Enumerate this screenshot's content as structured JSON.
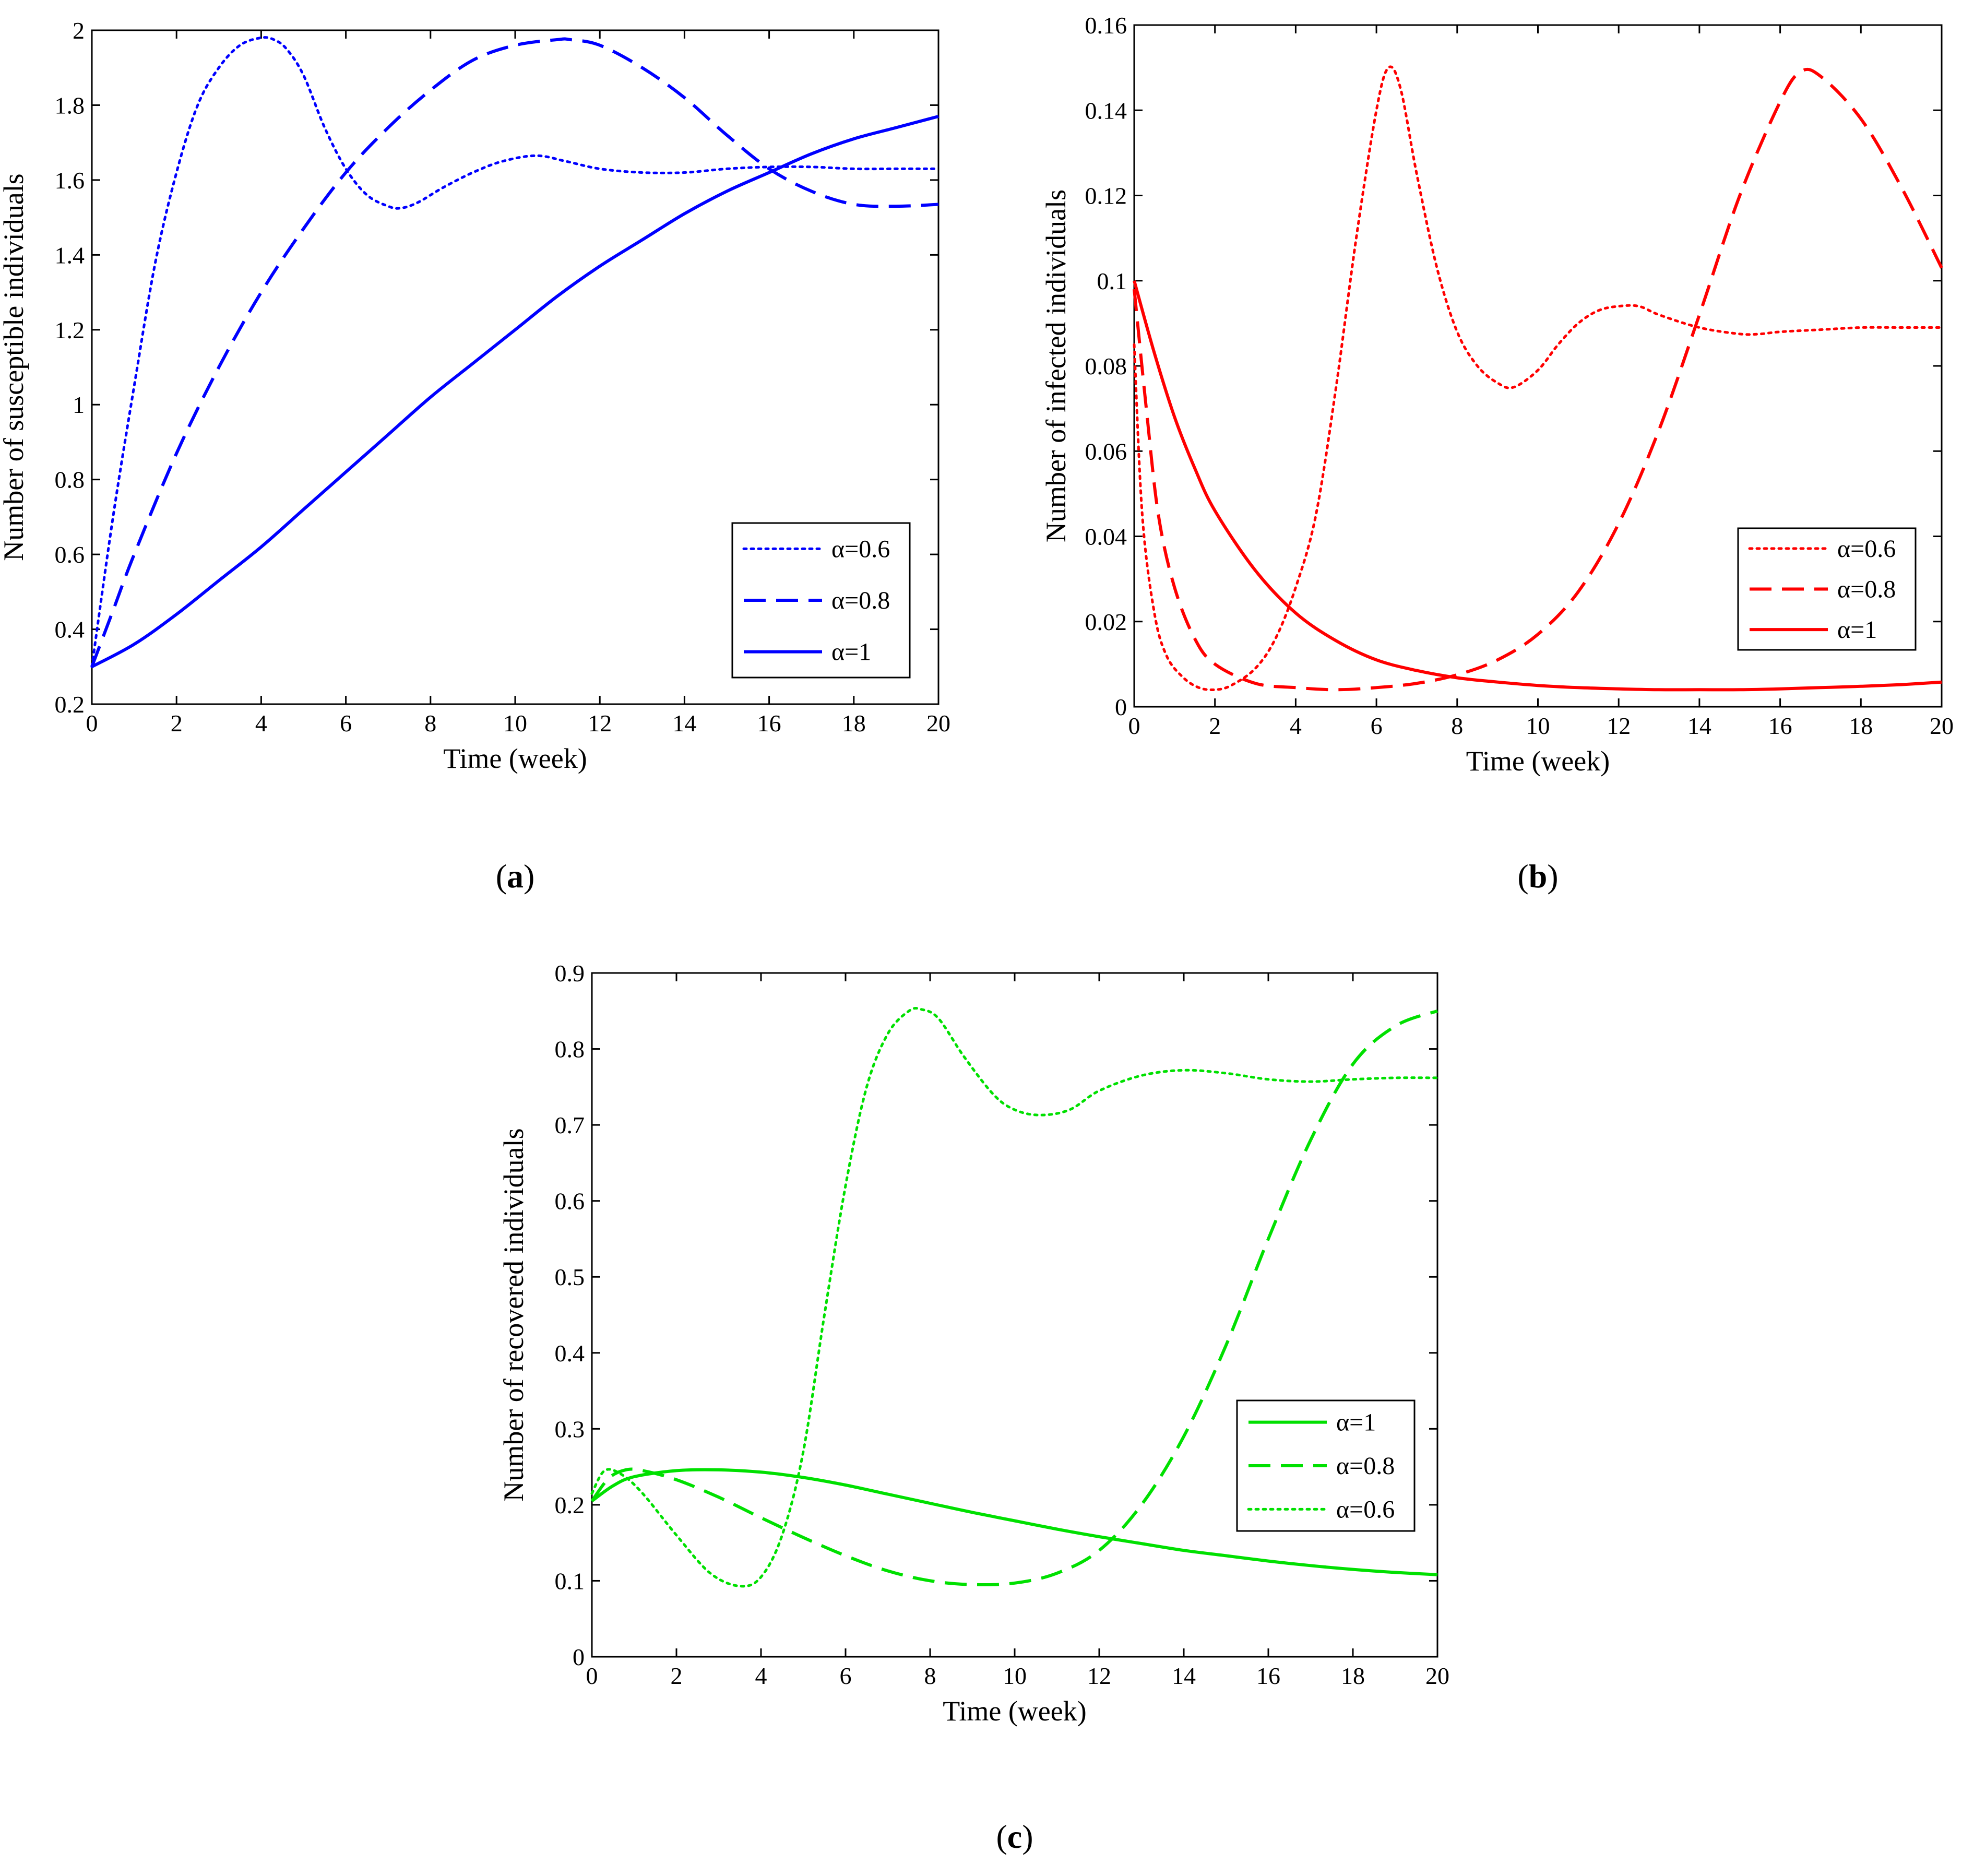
{
  "chart_data": [
    {
      "type": "line",
      "panel_label": "a",
      "xlabel": "Time (week)",
      "ylabel": "Number of susceptible individuals",
      "xlim": [
        0,
        20
      ],
      "ylim": [
        0.2,
        2
      ],
      "xticks": [
        "0",
        "2",
        "4",
        "6",
        "8",
        "10",
        "12",
        "14",
        "16",
        "18",
        "20"
      ],
      "yticks": [
        "0.2",
        "0.4",
        "0.6",
        "0.8",
        "1",
        "1.2",
        "1.4",
        "1.6",
        "1.8",
        "2"
      ],
      "grid": false,
      "legend_position": "lower-right",
      "color": "#0000ff",
      "series": [
        {
          "name": "α=0.6",
          "style": "dotted",
          "x": [
            0,
            0.5,
            1,
            1.5,
            2,
            2.5,
            3,
            3.5,
            4,
            4.3,
            4.6,
            5,
            5.5,
            6,
            6.5,
            7,
            7.3,
            7.7,
            8.3,
            9,
            9.7,
            10.5,
            11.2,
            12,
            13,
            14,
            15,
            16,
            17,
            18,
            19,
            20
          ],
          "y": [
            0.3,
            0.7,
            1.05,
            1.38,
            1.62,
            1.8,
            1.9,
            1.96,
            1.98,
            1.975,
            1.95,
            1.88,
            1.74,
            1.63,
            1.56,
            1.53,
            1.525,
            1.54,
            1.58,
            1.62,
            1.65,
            1.665,
            1.65,
            1.63,
            1.62,
            1.62,
            1.63,
            1.635,
            1.635,
            1.63,
            1.63,
            1.63
          ]
        },
        {
          "name": "α=0.8",
          "style": "dashed",
          "x": [
            0,
            0.5,
            1,
            2,
            3,
            4,
            5,
            6,
            7,
            8,
            9,
            10,
            11,
            11.3,
            12,
            13,
            14,
            15,
            16,
            17,
            18,
            19,
            20
          ],
          "y": [
            0.3,
            0.45,
            0.6,
            0.87,
            1.1,
            1.3,
            1.47,
            1.62,
            1.74,
            1.84,
            1.92,
            1.96,
            1.975,
            1.975,
            1.96,
            1.9,
            1.82,
            1.72,
            1.63,
            1.57,
            1.535,
            1.53,
            1.535
          ]
        },
        {
          "name": "α=1",
          "style": "solid",
          "x": [
            0,
            1,
            2,
            3,
            4,
            5,
            6,
            7,
            8,
            9,
            10,
            11,
            12,
            13,
            14,
            15,
            16,
            17,
            18,
            19,
            20
          ],
          "y": [
            0.3,
            0.36,
            0.44,
            0.53,
            0.62,
            0.72,
            0.82,
            0.92,
            1.02,
            1.11,
            1.2,
            1.29,
            1.37,
            1.44,
            1.51,
            1.57,
            1.62,
            1.67,
            1.71,
            1.74,
            1.77
          ]
        }
      ]
    },
    {
      "type": "line",
      "panel_label": "b",
      "xlabel": "Time (week)",
      "ylabel": "Number of infected individuals",
      "xlim": [
        0,
        20
      ],
      "ylim": [
        0,
        0.16
      ],
      "xticks": [
        "0",
        "2",
        "4",
        "6",
        "8",
        "10",
        "12",
        "14",
        "16",
        "18",
        "20"
      ],
      "yticks": [
        "0",
        "0.02",
        "0.04",
        "0.06",
        "0.08",
        "0.1",
        "0.12",
        "0.14",
        "0.16"
      ],
      "grid": false,
      "legend_position": "lower-right",
      "color": "#ff0000",
      "series": [
        {
          "name": "α=0.6",
          "style": "dotted",
          "x": [
            0,
            0.2,
            0.5,
            0.8,
            1.2,
            1.6,
            2,
            2.4,
            3,
            3.5,
            4,
            4.5,
            5,
            5.5,
            6,
            6.3,
            6.6,
            7,
            7.5,
            8,
            8.5,
            9,
            9.4,
            10,
            10.5,
            11,
            11.5,
            12,
            12.5,
            13,
            14,
            15,
            15.5,
            16,
            17,
            18,
            19,
            20
          ],
          "y": [
            0.085,
            0.045,
            0.022,
            0.012,
            0.007,
            0.0045,
            0.004,
            0.005,
            0.009,
            0.016,
            0.028,
            0.045,
            0.075,
            0.11,
            0.14,
            0.15,
            0.145,
            0.125,
            0.103,
            0.088,
            0.08,
            0.076,
            0.075,
            0.079,
            0.085,
            0.09,
            0.093,
            0.094,
            0.094,
            0.092,
            0.089,
            0.0875,
            0.0875,
            0.088,
            0.0885,
            0.089,
            0.089,
            0.089
          ]
        },
        {
          "name": "α=0.8",
          "style": "dashed",
          "x": [
            0,
            0.3,
            0.6,
            1,
            1.5,
            2,
            3,
            4,
            5,
            6,
            7,
            8,
            9,
            10,
            11,
            12,
            13,
            14,
            15,
            16,
            16.5,
            17,
            18,
            19,
            20
          ],
          "y": [
            0.098,
            0.07,
            0.045,
            0.028,
            0.016,
            0.01,
            0.0055,
            0.0045,
            0.004,
            0.0045,
            0.0055,
            0.0075,
            0.011,
            0.017,
            0.027,
            0.043,
            0.065,
            0.092,
            0.12,
            0.142,
            0.149,
            0.148,
            0.138,
            0.122,
            0.103
          ]
        },
        {
          "name": "α=1",
          "style": "solid",
          "x": [
            0,
            0.5,
            1,
            1.5,
            2,
            3,
            4,
            5,
            6,
            7,
            8,
            9,
            10,
            11,
            12,
            13,
            14,
            15,
            16,
            17,
            18,
            19,
            20
          ],
          "y": [
            0.1,
            0.083,
            0.068,
            0.056,
            0.046,
            0.032,
            0.022,
            0.0155,
            0.011,
            0.0085,
            0.0068,
            0.0058,
            0.005,
            0.0045,
            0.0042,
            0.004,
            0.004,
            0.004,
            0.0042,
            0.0045,
            0.0048,
            0.0052,
            0.0058
          ]
        }
      ]
    },
    {
      "type": "line",
      "panel_label": "c",
      "xlabel": "Time (week)",
      "ylabel": "Number of recovered individuals",
      "xlim": [
        0,
        20
      ],
      "ylim": [
        0,
        0.9
      ],
      "xticks": [
        "0",
        "2",
        "4",
        "6",
        "8",
        "10",
        "12",
        "14",
        "16",
        "18",
        "20"
      ],
      "yticks": [
        "0",
        "0.1",
        "0.2",
        "0.3",
        "0.4",
        "0.5",
        "0.6",
        "0.7",
        "0.8",
        "0.9"
      ],
      "grid": false,
      "legend_position": "lower-right",
      "color": "#00e000",
      "series": [
        {
          "name": "α=1",
          "style": "solid",
          "x": [
            0,
            0.5,
            1,
            2,
            3,
            4,
            5,
            6,
            7,
            8,
            9,
            10,
            11,
            12,
            13,
            14,
            15,
            16,
            17,
            18,
            19,
            20
          ],
          "y": [
            0.205,
            0.225,
            0.237,
            0.245,
            0.246,
            0.243,
            0.236,
            0.226,
            0.214,
            0.202,
            0.19,
            0.179,
            0.168,
            0.158,
            0.149,
            0.14,
            0.133,
            0.126,
            0.12,
            0.115,
            0.111,
            0.108
          ]
        },
        {
          "name": "α=0.8",
          "style": "dashed",
          "x": [
            0,
            0.4,
            0.8,
            1.2,
            2,
            3,
            4,
            5,
            6,
            7,
            8,
            9,
            10,
            11,
            12,
            13,
            14,
            15,
            16,
            17,
            18,
            19,
            20
          ],
          "y": [
            0.205,
            0.235,
            0.246,
            0.245,
            0.233,
            0.21,
            0.183,
            0.157,
            0.133,
            0.113,
            0.1,
            0.095,
            0.097,
            0.11,
            0.14,
            0.2,
            0.29,
            0.41,
            0.55,
            0.68,
            0.78,
            0.83,
            0.85
          ]
        },
        {
          "name": "α=0.6",
          "style": "dotted",
          "x": [
            0,
            0.3,
            0.7,
            1.2,
            2,
            2.8,
            3.5,
            4,
            4.5,
            5,
            5.5,
            6,
            6.5,
            7,
            7.5,
            7.8,
            8.2,
            8.8,
            9.5,
            10,
            10.6,
            11.3,
            12,
            13,
            14,
            15,
            16,
            17,
            18,
            19,
            20
          ],
          "y": [
            0.215,
            0.245,
            0.24,
            0.215,
            0.16,
            0.11,
            0.093,
            0.105,
            0.16,
            0.27,
            0.45,
            0.62,
            0.75,
            0.82,
            0.85,
            0.852,
            0.84,
            0.79,
            0.74,
            0.72,
            0.713,
            0.72,
            0.745,
            0.765,
            0.772,
            0.768,
            0.76,
            0.757,
            0.76,
            0.762,
            0.762
          ]
        }
      ]
    }
  ]
}
